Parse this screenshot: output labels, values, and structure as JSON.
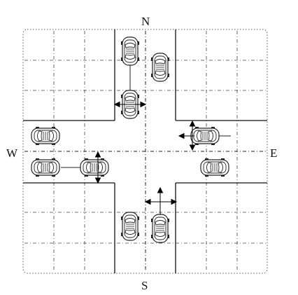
{
  "compass": {
    "north": "N",
    "south": "S",
    "west": "W",
    "east": "E"
  },
  "cars": [
    {
      "id": "north-lane-car-1",
      "heading": "vertical"
    },
    {
      "id": "north-lane-car-2",
      "heading": "vertical"
    },
    {
      "id": "north-lane-car-3",
      "heading": "vertical"
    },
    {
      "id": "west-lane-car-1",
      "heading": "horizontal"
    },
    {
      "id": "west-lane-car-2",
      "heading": "horizontal"
    },
    {
      "id": "west-lane-car-3",
      "heading": "horizontal"
    },
    {
      "id": "east-lane-car-1",
      "heading": "horizontal"
    },
    {
      "id": "east-lane-car-2",
      "heading": "horizontal"
    },
    {
      "id": "south-lane-car-1",
      "heading": "vertical"
    },
    {
      "id": "south-lane-car-2",
      "heading": "vertical"
    }
  ]
}
